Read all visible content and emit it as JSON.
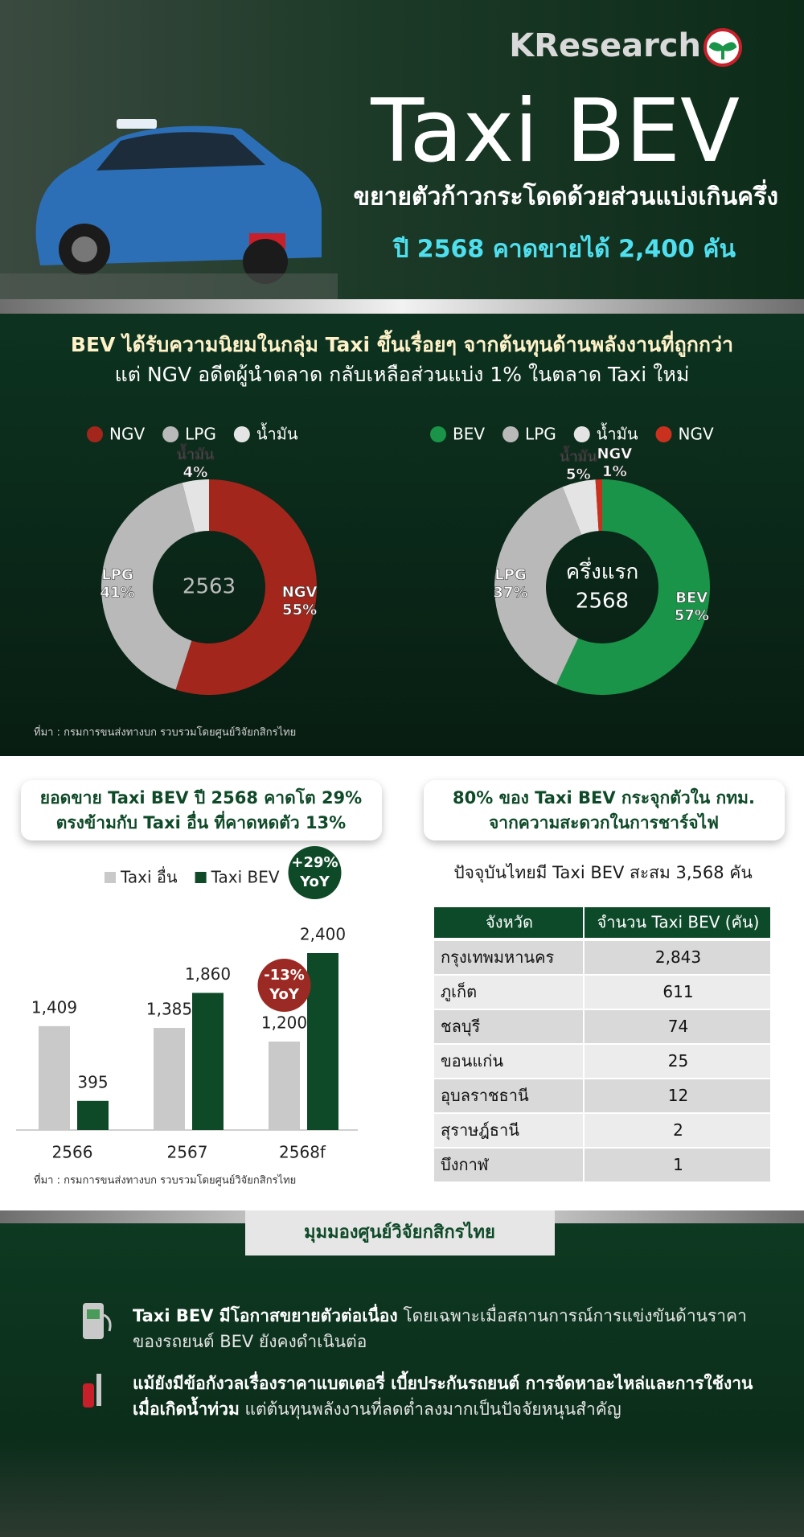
{
  "header": {
    "brand": "KResearch",
    "title": "Taxi BEV",
    "subtitle": "ขยายตัวก้าวกระโดดด้วยส่วนแบ่งเกินครึ่ง",
    "forecast": "ปี 2568 คาดขายได้ 2,400 คัน"
  },
  "section1": {
    "headline": "BEV ได้รับความนิยมในกลุ่ม Taxi ขึ้นเรื่อยๆ จากต้นทุนด้านพลังงานที่ถูกกว่า",
    "subline": "แต่ NGV อดีตผู้นำตลาด กลับเหลือส่วนแบ่ง 1% ในตลาด Taxi ใหม่",
    "source": "ที่มา : กรมการขนส่งทางบก รวบรวมโดยศูนย์วิจัยกสิกรไทย"
  },
  "chart_data": [
    {
      "type": "pie",
      "center_label": [
        "2563"
      ],
      "categories": [
        "NGV",
        "LPG",
        "น้ำมัน"
      ],
      "values": [
        55,
        41,
        4
      ],
      "value_labels": [
        "55%",
        "41%",
        "4%"
      ],
      "colors": [
        "#a3261c",
        "#b9b9b9",
        "#e4e4e4"
      ]
    },
    {
      "type": "pie",
      "center_label": [
        "ครึ่งแรก",
        "2568"
      ],
      "categories": [
        "BEV",
        "LPG",
        "น้ำมัน",
        "NGV"
      ],
      "values": [
        57,
        37,
        5,
        1
      ],
      "value_labels": [
        "57%",
        "37%",
        "5%",
        "1%"
      ],
      "colors": [
        "#1a9448",
        "#b9b9b9",
        "#e4e4e4",
        "#c9301e"
      ]
    },
    {
      "type": "bar",
      "categories": [
        "2566",
        "2567",
        "2568f"
      ],
      "series": [
        {
          "name": "Taxi อื่น",
          "color": "#c9c9c9",
          "values": [
            1409,
            1385,
            1200
          ],
          "value_labels": [
            "1,409",
            "1,385",
            "1,200"
          ]
        },
        {
          "name": "Taxi BEV",
          "color": "#0f4a28",
          "values": [
            395,
            1860,
            2400
          ],
          "value_labels": [
            "395",
            "1,860",
            "2,400"
          ]
        }
      ],
      "annotations": [
        {
          "lines": [
            "-13%",
            "YoY"
          ],
          "color": "#9c2a24"
        },
        {
          "lines": [
            "+29%",
            "YoY"
          ],
          "color": "#0f4a28"
        }
      ]
    }
  ],
  "section2": {
    "left_box": [
      "ยอดขาย Taxi BEV ปี 2568 คาดโต 29%",
      "ตรงข้ามกับ Taxi อื่น ที่คาดหดตัว 13%"
    ],
    "right_box": [
      "80% ของ Taxi BEV กระจุกตัวใน กทม.",
      "จากความสะดวกในการชาร์จไฟ"
    ],
    "table_title": "ปัจจุบันไทยมี Taxi BEV สะสม 3,568 คัน",
    "source": "ที่มา : กรมการขนส่งทางบก รวบรวมโดยศูนย์วิจัยกสิกรไทย"
  },
  "table": {
    "columns": [
      "จังหวัด",
      "จำนวน Taxi BEV (คัน)"
    ],
    "rows": [
      [
        "กรุงเทพมหานคร",
        "2,843"
      ],
      [
        "ภูเก็ต",
        "611"
      ],
      [
        "ชลบุรี",
        "74"
      ],
      [
        "ขอนแก่น",
        "25"
      ],
      [
        "อุบลราชธานี",
        "12"
      ],
      [
        "สุราษฎ์ธานี",
        "2"
      ],
      [
        "บึงกาฬ",
        "1"
      ]
    ]
  },
  "outlook": {
    "title": "มุมมองศูนย์วิจัยกสิกรไทย",
    "points": [
      {
        "bold": "Taxi BEV มีโอกาสขยายตัวต่อเนื่อง",
        "text": "โดยเฉพาะเมื่อสถานการณ์การแข่งขันด้านราคาของรถยนต์ BEV ยังคงดำเนินต่อ"
      },
      {
        "bold": "แม้ยังมีข้อกังวลเรื่องราคาแบตเตอรี่ เบี้ยประกันรถยนต์ การจัดหาอะไหล่และการใช้งานเมื่อเกิดน้ำท่วม",
        "text": "แต่ต้นทุนพลังงานที่ลดต่ำลงมากเป็นปัจจัยหนุนสำคัญ"
      }
    ]
  }
}
